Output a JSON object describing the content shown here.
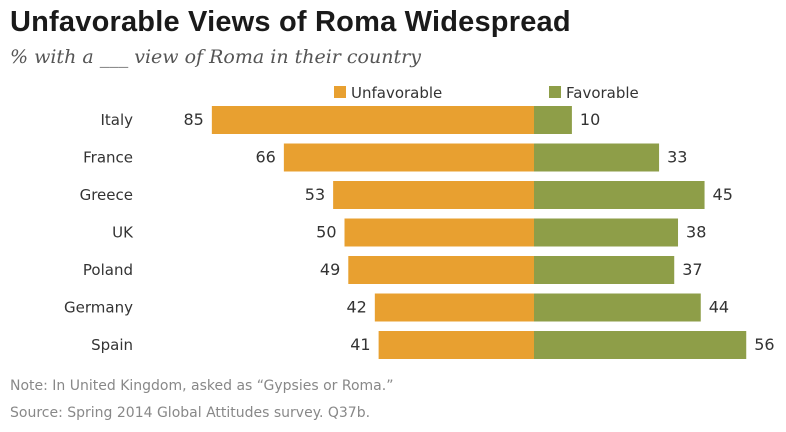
{
  "title": "Unfavorable Views of Roma Widespread",
  "subtitle": "% with a ___ view of Roma in their country",
  "notes": {
    "note": "Note: In United Kingdom, asked as “Gypsies or Roma.”",
    "source": "Source: Spring 2014 Global Attitudes survey. Q37b."
  },
  "colors": {
    "unfavorable": "#E8A030",
    "favorable": "#8E9E48"
  },
  "chart_data": {
    "type": "bar",
    "orientation": "horizontal-diverging",
    "categories": [
      "Italy",
      "France",
      "Greece",
      "UK",
      "Poland",
      "Germany",
      "Spain"
    ],
    "series": [
      {
        "name": "Unfavorable",
        "values": [
          85,
          66,
          53,
          50,
          49,
          42,
          41
        ]
      },
      {
        "name": "Favorable",
        "values": [
          10,
          33,
          45,
          38,
          37,
          44,
          56
        ]
      }
    ],
    "legend": [
      "Unfavorable",
      "Favorable"
    ],
    "legend_position": "top-center",
    "grid": false
  }
}
